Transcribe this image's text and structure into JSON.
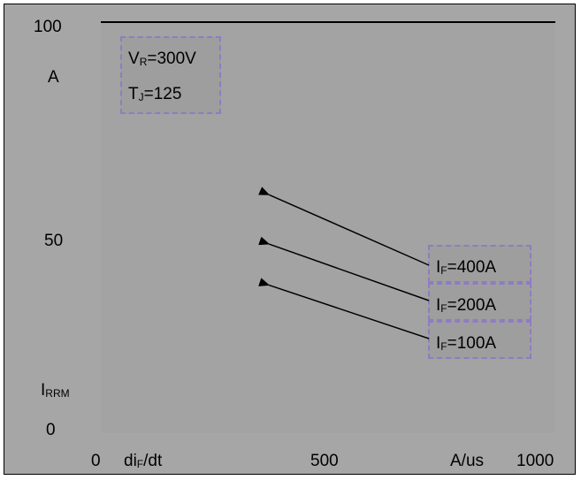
{
  "chart_data": {
    "type": "line",
    "x_ticks": [
      "0",
      "500",
      "1000"
    ],
    "y_ticks": [
      "0",
      "50",
      "100"
    ],
    "xlim": [
      0,
      1000
    ],
    "ylim": [
      0,
      100
    ],
    "xlabel": {
      "main": "di",
      "sub": "F",
      "suffix": "/dt"
    },
    "xunit": "A/us",
    "ylabel": {
      "main": "I",
      "sub": "RRM"
    },
    "yunit": "A",
    "grid": false,
    "top_line": {
      "x": [
        0,
        1000
      ],
      "y": [
        100,
        100
      ],
      "color": "#000000"
    },
    "conditions": [
      {
        "main": "V",
        "sub": "R",
        "value": "=300V"
      },
      {
        "main": "T",
        "sub": "J",
        "value": "=125"
      }
    ],
    "series_labels": [
      {
        "main": "I",
        "sub": "F",
        "value": "=400A",
        "arrow_target": {
          "x": 370,
          "y": 58
        }
      },
      {
        "main": "I",
        "sub": "F",
        "value": "=200A",
        "arrow_target": {
          "x": 370,
          "y": 46
        }
      },
      {
        "main": "I",
        "sub": "F",
        "value": "=100A",
        "arrow_target": {
          "x": 370,
          "y": 36
        }
      }
    ],
    "annotation_border_color": "#8e7cc3",
    "background_color": "#a6a6a6"
  }
}
